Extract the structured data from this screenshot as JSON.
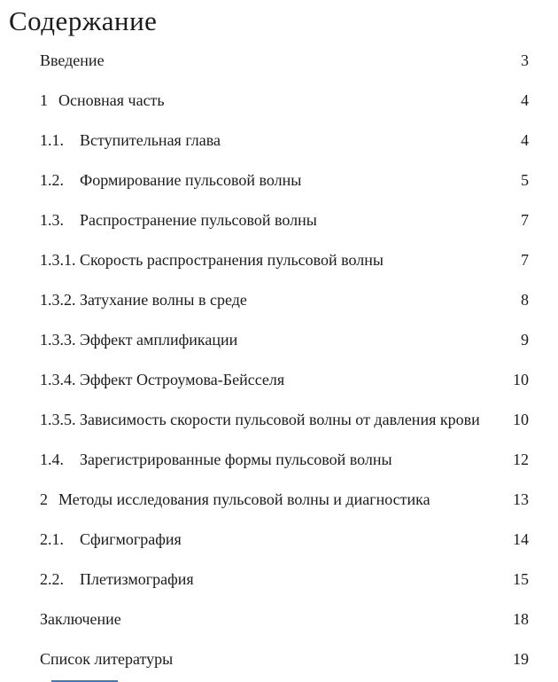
{
  "page": {
    "background": "#ffffff",
    "text_color": "#1b1b1b",
    "cutoff_bar_color": "#2e7cd9"
  },
  "title": "Содержание",
  "toc": {
    "entries": [
      {
        "num": "",
        "label": "Введение",
        "page": "3"
      },
      {
        "num": "1",
        "label": "Основная часть",
        "page": "4"
      },
      {
        "num": "1.1.",
        "label": "Вступительная глава",
        "page": "4"
      },
      {
        "num": "1.2.",
        "label": "Формирование пульсовой волны",
        "page": "5"
      },
      {
        "num": "1.3.",
        "label": "Распространение пульсовой волны",
        "page": "7"
      },
      {
        "num": "1.3.1.",
        "label": "Скорость распространения пульсовой волны",
        "page": "7"
      },
      {
        "num": "1.3.2.",
        "label": "Затухание волны в среде",
        "page": "8"
      },
      {
        "num": "1.3.3.",
        "label": "Эффект амплификации",
        "page": "9"
      },
      {
        "num": "1.3.4.",
        "label": "Эффект Остроумова-Бейсселя",
        "page": "10"
      },
      {
        "num": "1.3.5.",
        "label": "Зависимость скорости пульсовой волны от давления крови",
        "page": "10"
      },
      {
        "num": "1.4.",
        "label": "Зарегистрированные формы пульсовой волны",
        "page": "12"
      },
      {
        "num": "2",
        "label": "Методы исследования пульсовой волны и диагностика",
        "page": "13"
      },
      {
        "num": "2.1.",
        "label": "Сфигмография",
        "page": "14"
      },
      {
        "num": "2.2.",
        "label": "Плетизмография",
        "page": "15"
      },
      {
        "num": "",
        "label": "Заключение",
        "page": "18"
      },
      {
        "num": "",
        "label": "Список литературы",
        "page": "19"
      }
    ]
  }
}
